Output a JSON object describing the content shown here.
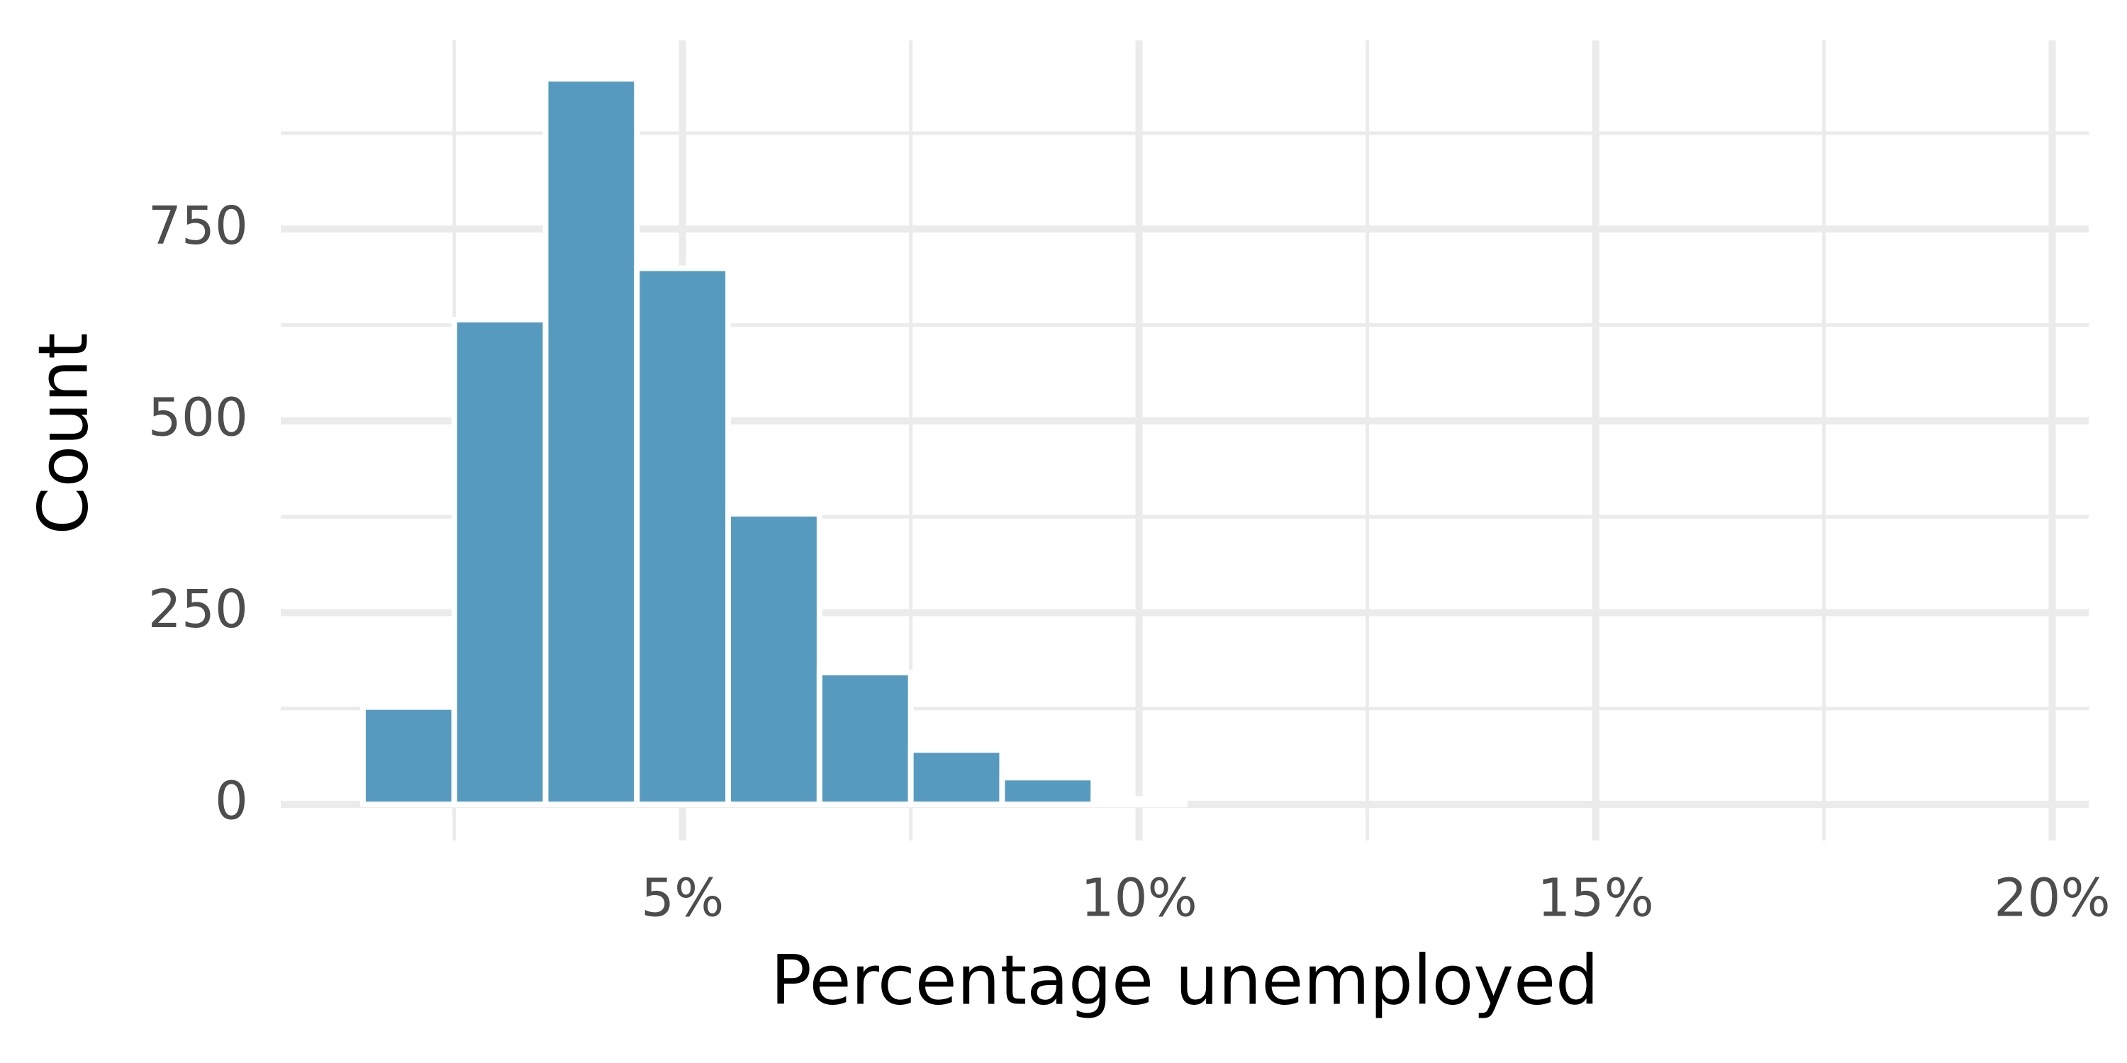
{
  "chart_data": {
    "type": "histogram",
    "x_label": "Percentage unemployed",
    "y_label": "Count",
    "bins": [
      1.5,
      2.5,
      3.5,
      4.5,
      5.5,
      6.5,
      7.5,
      8.5,
      9.5,
      10.5
    ],
    "values": [
      127,
      632,
      946,
      699,
      379,
      172,
      71,
      35,
      7
    ],
    "color": "#569bbf",
    "xlim": [
      0.6,
      20.4
    ],
    "ylim": [
      -47,
      996
    ],
    "xticks": [
      {
        "value": 5,
        "label": "5%"
      },
      {
        "value": 10,
        "label": "10%"
      },
      {
        "value": 15,
        "label": "15%"
      },
      {
        "value": 20,
        "label": "20%"
      }
    ],
    "yticks": [
      0,
      250,
      500,
      750
    ],
    "xminor": [
      2.5,
      7.5,
      12.5,
      17.5
    ],
    "yminor": [
      125,
      375,
      625,
      875
    ],
    "grid": true
  }
}
